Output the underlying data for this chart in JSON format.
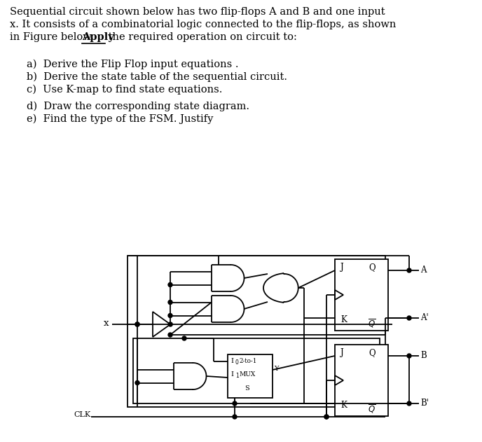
{
  "bg_color": "#ffffff",
  "line1": "Sequential circuit shown below has two flip-flops A and B and one input",
  "line2": "x. It consists of a combinatorial logic connected to the flip-flops, as shown",
  "line3_pre": "in Figure below. ",
  "line3_apply": "Apply",
  "line3_post": " the required operation on circuit to:",
  "item_a": "a)  Derive the Flip Flop input equations .",
  "item_b": "b)  Derive the state table of the sequential circuit.",
  "item_c": "c)  Use K-map to find state equations.",
  "item_d": "d)  Draw the corresponding state diagram.",
  "item_e": "e)  Find the type of the FSM. Justify",
  "clk_label": "CLK"
}
